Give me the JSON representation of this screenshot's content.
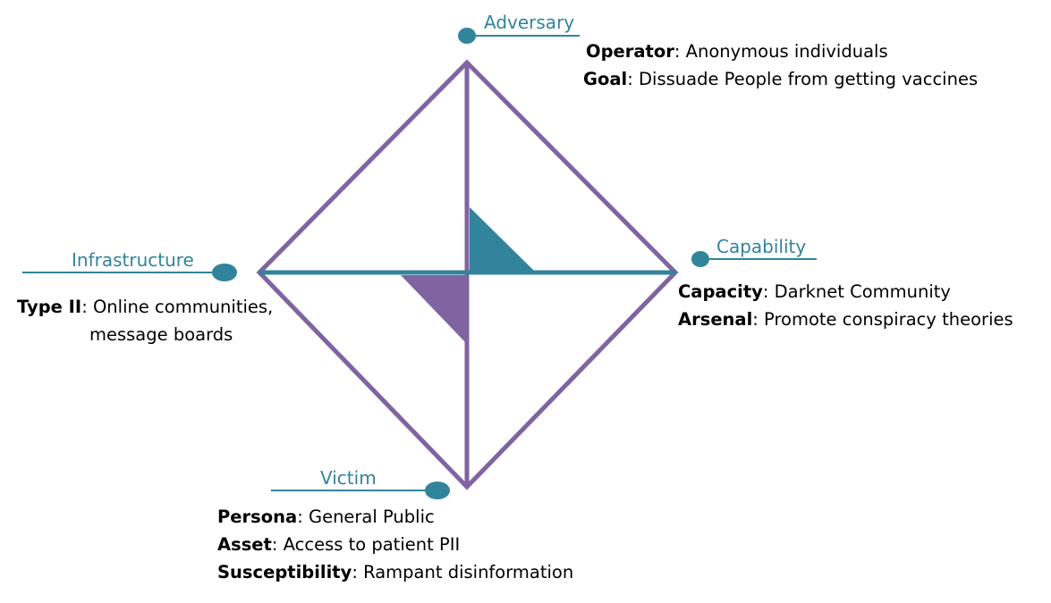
{
  "colors": {
    "diamond": "#8064a2",
    "axis": "#31849b",
    "label": "#31849b",
    "text": "#000000"
  },
  "nodes": {
    "adversary": {
      "label": "Adversary",
      "rows": [
        {
          "key": "Operator",
          "value": ": Anonymous individuals"
        },
        {
          "key": "Goal",
          "value": ": Dissuade People from getting vaccines"
        }
      ]
    },
    "capability": {
      "label": "Capability",
      "rows": [
        {
          "key": "Capacity",
          "value": ": Darknet Community"
        },
        {
          "key": "Arsenal",
          "value": ": Promote conspiracy theories"
        }
      ]
    },
    "infrastructure": {
      "label": "Infrastructure",
      "rows": [
        {
          "key": "Type II",
          "value": ": Online communities,"
        },
        {
          "key": "",
          "value": "message boards"
        }
      ]
    },
    "victim": {
      "label": "Victim",
      "rows": [
        {
          "key": "Persona",
          "value": ": General Public"
        },
        {
          "key": "Asset",
          "value": ": Access to patient PII"
        },
        {
          "key": "Susceptibility",
          "value": ": Rampant disinformation"
        }
      ]
    }
  }
}
